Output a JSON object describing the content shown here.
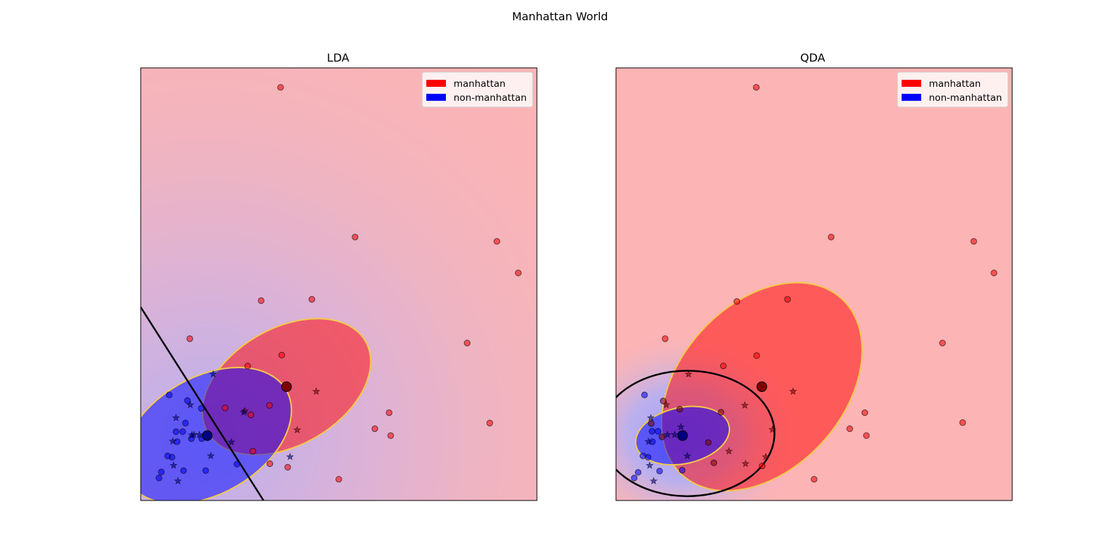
{
  "figure": {
    "title": "Manhattan World"
  },
  "chart_data": [
    {
      "type": "scatter",
      "title": "LDA",
      "xlabel": "",
      "ylabel": "",
      "xlim": [
        0,
        1
      ],
      "ylim": [
        0,
        1
      ],
      "ticks": "none",
      "grid": false,
      "legend_position": "top-right",
      "legend": [
        {
          "label": "manhattan",
          "color": "#ff0000"
        },
        {
          "label": "non-manhattan",
          "color": "#0000ff"
        }
      ],
      "series": [
        {
          "name": "manhattan",
          "marker": "circle",
          "role": "correctly classified",
          "color": "#ff0000",
          "points": [
            [
              0.353,
              0.955
            ],
            [
              0.541,
              0.609
            ],
            [
              0.899,
              0.599
            ],
            [
              0.953,
              0.526
            ],
            [
              0.304,
              0.462
            ],
            [
              0.432,
              0.465
            ],
            [
              0.124,
              0.374
            ],
            [
              0.356,
              0.336
            ],
            [
              0.27,
              0.311
            ],
            [
              0.824,
              0.364
            ],
            [
              0.627,
              0.203
            ],
            [
              0.881,
              0.179
            ],
            [
              0.591,
              0.166
            ],
            [
              0.631,
              0.15
            ],
            [
              0.278,
              0.198
            ],
            [
              0.213,
              0.214
            ],
            [
              0.325,
              0.22
            ],
            [
              0.283,
              0.114
            ],
            [
              0.326,
              0.085
            ],
            [
              0.371,
              0.077
            ],
            [
              0.5,
              0.049
            ]
          ]
        },
        {
          "name": "manhattan",
          "marker": "star",
          "role": "misclassified",
          "color": "#800000",
          "points": [
            [
              0.443,
              0.252
            ],
            [
              0.395,
              0.163
            ],
            [
              0.263,
              0.207
            ]
          ]
        },
        {
          "name": "non-manhattan",
          "marker": "circle",
          "role": "correctly classified",
          "color": "#0000ff",
          "points": [
            [
              0.072,
              0.244
            ],
            [
              0.118,
              0.231
            ],
            [
              0.153,
              0.213
            ],
            [
              0.113,
              0.179
            ],
            [
              0.089,
              0.159
            ],
            [
              0.106,
              0.159
            ],
            [
              0.128,
              0.143
            ],
            [
              0.092,
              0.136
            ],
            [
              0.079,
              0.1
            ],
            [
              0.068,
              0.103
            ],
            [
              0.154,
              0.143
            ],
            [
              0.243,
              0.084
            ],
            [
              0.052,
              0.066
            ],
            [
              0.108,
              0.069
            ],
            [
              0.164,
              0.069
            ],
            [
              0.046,
              0.052
            ]
          ]
        },
        {
          "name": "non-manhattan",
          "marker": "star",
          "role": "misclassified",
          "color": "#000080",
          "points": [
            [
              0.183,
              0.292
            ],
            [
              0.125,
              0.221
            ],
            [
              0.26,
              0.204
            ],
            [
              0.089,
              0.191
            ],
            [
              0.129,
              0.151
            ],
            [
              0.134,
              0.152
            ],
            [
              0.148,
              0.152
            ],
            [
              0.081,
              0.137
            ],
            [
              0.229,
              0.135
            ],
            [
              0.177,
              0.103
            ],
            [
              0.377,
              0.101
            ],
            [
              0.083,
              0.081
            ],
            [
              0.094,
              0.045
            ]
          ]
        },
        {
          "name": "manhattan mean",
          "marker": "large-circle",
          "color": "#800000",
          "points": [
            [
              0.368,
              0.263
            ]
          ]
        },
        {
          "name": "non-manhattan mean",
          "marker": "large-circle",
          "color": "#000080",
          "points": [
            [
              0.168,
              0.15
            ]
          ]
        }
      ],
      "ellipses": [
        {
          "class": "manhattan",
          "center": [
            0.368,
            0.263
          ],
          "width": 0.46,
          "height": 0.27,
          "angle_deg": 30,
          "fill": "#ff0000",
          "edge": "#f2c94c"
        },
        {
          "class": "non-manhattan",
          "center": [
            0.168,
            0.15
          ],
          "width": 0.46,
          "height": 0.27,
          "angle_deg": 30,
          "fill": "#0000ff",
          "edge": "#f2c94c"
        }
      ],
      "decision_boundary": {
        "kind": "line",
        "from": [
          0.0,
          0.447
        ],
        "to": [
          0.31,
          0.0
        ]
      }
    },
    {
      "type": "scatter",
      "title": "QDA",
      "xlabel": "",
      "ylabel": "",
      "xlim": [
        0,
        1
      ],
      "ylim": [
        0,
        1
      ],
      "ticks": "none",
      "grid": false,
      "legend_position": "top-right",
      "legend": [
        {
          "label": "manhattan",
          "color": "#ff0000"
        },
        {
          "label": "non-manhattan",
          "color": "#0000ff"
        }
      ],
      "series": [
        {
          "name": "manhattan",
          "marker": "circle",
          "role": "correctly classified",
          "color": "#ff0000",
          "points": [
            [
              0.354,
              0.955
            ],
            [
              0.543,
              0.609
            ],
            [
              0.903,
              0.599
            ],
            [
              0.954,
              0.526
            ],
            [
              0.305,
              0.46
            ],
            [
              0.433,
              0.465
            ],
            [
              0.124,
              0.374
            ],
            [
              0.355,
              0.335
            ],
            [
              0.271,
              0.311
            ],
            [
              0.824,
              0.364
            ],
            [
              0.628,
              0.203
            ],
            [
              0.875,
              0.18
            ],
            [
              0.59,
              0.166
            ],
            [
              0.632,
              0.15
            ],
            [
              0.369,
              0.08
            ],
            [
              0.5,
              0.049
            ]
          ]
        },
        {
          "name": "manhattan",
          "marker": "circle",
          "role": "misclassified",
          "color": "#800000",
          "points": [
            [
              0.119,
              0.23
            ],
            [
              0.161,
              0.211
            ],
            [
              0.265,
              0.204
            ],
            [
              0.089,
              0.178
            ],
            [
              0.116,
              0.147
            ],
            [
              0.233,
              0.134
            ],
            [
              0.247,
              0.087
            ]
          ]
        },
        {
          "name": "manhattan",
          "marker": "star",
          "role": "misclassified",
          "color": "#800000",
          "points": [
            [
              0.447,
              0.252
            ],
            [
              0.183,
              0.292
            ],
            [
              0.127,
              0.221
            ],
            [
              0.325,
              0.22
            ],
            [
              0.395,
              0.164
            ],
            [
              0.285,
              0.114
            ],
            [
              0.378,
              0.101
            ],
            [
              0.327,
              0.085
            ]
          ]
        },
        {
          "name": "non-manhattan",
          "marker": "circle",
          "role": "correctly classified",
          "color": "#0000ff",
          "points": [
            [
              0.072,
              0.244
            ],
            [
              0.091,
              0.16
            ],
            [
              0.106,
              0.16
            ],
            [
              0.092,
              0.136
            ],
            [
              0.081,
              0.1
            ],
            [
              0.068,
              0.103
            ],
            [
              0.167,
              0.07
            ],
            [
              0.11,
              0.068
            ],
            [
              0.056,
              0.065
            ],
            [
              0.046,
              0.052
            ]
          ]
        },
        {
          "name": "non-manhattan",
          "marker": "star",
          "role": "misclassified",
          "color": "#000080",
          "points": [
            [
              0.088,
              0.191
            ],
            [
              0.164,
              0.17
            ],
            [
              0.13,
              0.152
            ],
            [
              0.148,
              0.152
            ],
            [
              0.082,
              0.136
            ],
            [
              0.18,
              0.103
            ],
            [
              0.085,
              0.081
            ],
            [
              0.095,
              0.045
            ]
          ]
        },
        {
          "name": "manhattan mean",
          "marker": "large-circle",
          "color": "#800000",
          "points": [
            [
              0.368,
              0.263
            ]
          ]
        },
        {
          "name": "non-manhattan mean",
          "marker": "large-circle",
          "color": "#000080",
          "points": [
            [
              0.168,
              0.15
            ]
          ]
        }
      ],
      "ellipses": [
        {
          "class": "manhattan",
          "center": [
            0.368,
            0.263
          ],
          "width": 0.6,
          "height": 0.38,
          "angle_deg": 48,
          "fill": "#ff0000",
          "edge": "#f2c94c"
        },
        {
          "class": "non-manhattan",
          "center": [
            0.168,
            0.15
          ],
          "width": 0.24,
          "height": 0.13,
          "angle_deg": 12,
          "fill": "#0000ff",
          "edge": "#f2c94c"
        }
      ],
      "decision_boundary": {
        "kind": "conic",
        "center": [
          0.18,
          0.155
        ],
        "width": 0.44,
        "height": 0.29,
        "angle_deg": 0
      }
    }
  ]
}
